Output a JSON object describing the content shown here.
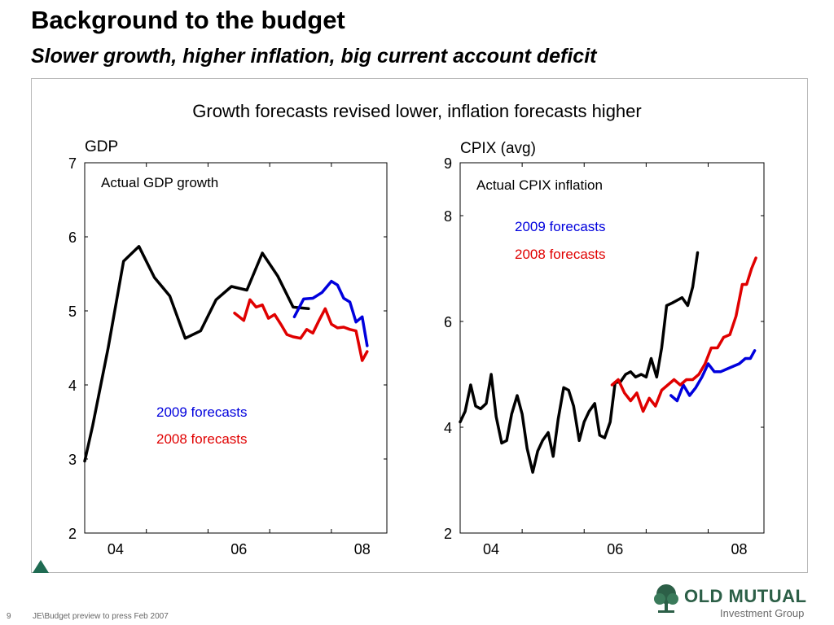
{
  "header": {
    "title": "Background to the budget",
    "subtitle": "Slower growth, higher inflation, big current account deficit"
  },
  "headline": "Growth forecasts revised lower, inflation forecasts higher",
  "footer": {
    "page_number": "9",
    "source_text": "JE\\Budget preview to press Feb 2007"
  },
  "logo": {
    "name": "OLD MUTUAL",
    "subtitle": "Investment Group",
    "brand_color": "#2c5f47"
  },
  "colors": {
    "actual": "#000000",
    "forecast_2009": "#0000dd",
    "forecast_2008": "#e00000"
  },
  "chart_data": [
    {
      "type": "line",
      "title": "GDP",
      "xlim": [
        2003.5,
        2008.4
      ],
      "ylim": [
        2,
        7
      ],
      "y_ticks": [
        2,
        3,
        4,
        5,
        6,
        7
      ],
      "x_ticks": [
        2004,
        2006,
        2008
      ],
      "x_tick_labels": [
        "04",
        "06",
        "08"
      ],
      "annotations": [
        "Actual GDP growth",
        "2009 forecasts",
        "2008 forecasts"
      ],
      "series": [
        {
          "name": "Actual GDP growth",
          "color": "#000000",
          "x": [
            2003.5,
            2003.63,
            2003.88,
            2004.13,
            2004.38,
            2004.63,
            2004.88,
            2005.13,
            2005.38,
            2005.63,
            2005.88,
            2006.13,
            2006.38,
            2006.63,
            2006.88,
            2007.13,
            2007.38,
            2007.63
          ],
          "y": [
            2.97,
            3.45,
            4.5,
            5.67,
            5.87,
            5.45,
            5.2,
            4.63,
            4.73,
            5.15,
            5.33,
            5.28,
            5.78,
            5.47,
            5.05,
            5.03,
            null,
            null
          ]
        },
        {
          "name": "2009 forecasts",
          "color": "#0000dd",
          "x": [
            2006.9,
            2007.05,
            2007.2,
            2007.35,
            2007.5,
            2007.6,
            2007.7,
            2007.8,
            2007.9,
            2008.0,
            2008.08
          ],
          "y": [
            4.92,
            5.16,
            5.17,
            5.25,
            5.4,
            5.35,
            5.17,
            5.12,
            4.85,
            4.92,
            4.53
          ]
        },
        {
          "name": "2008 forecasts",
          "color": "#e00000",
          "x": [
            2005.93,
            2006.08,
            2006.18,
            2006.28,
            2006.38,
            2006.48,
            2006.58,
            2006.68,
            2006.78,
            2006.88,
            2007.0,
            2007.1,
            2007.2,
            2007.3,
            2007.4,
            2007.5,
            2007.6,
            2007.7,
            2007.8,
            2007.9,
            2008.0,
            2008.08
          ],
          "y": [
            4.97,
            4.87,
            5.15,
            5.05,
            5.08,
            4.9,
            4.95,
            4.82,
            4.68,
            4.65,
            4.63,
            4.75,
            4.7,
            4.87,
            5.03,
            4.82,
            4.77,
            4.78,
            4.75,
            4.73,
            4.33,
            4.45
          ]
        }
      ]
    },
    {
      "type": "line",
      "title": "CPIX (avg)",
      "xlim": [
        2003.5,
        2008.4
      ],
      "ylim": [
        2,
        9
      ],
      "y_ticks": [
        2,
        4,
        6,
        8,
        9
      ],
      "x_ticks": [
        2004,
        2006,
        2008
      ],
      "x_tick_labels": [
        "04",
        "06",
        "08"
      ],
      "annotations": [
        "Actual CPIX inflation",
        "2009 forecasts",
        "2008 forecasts"
      ],
      "series": [
        {
          "name": "Actual CPIX inflation",
          "color": "#000000",
          "x": [
            2003.5,
            2003.58,
            2003.67,
            2003.75,
            2003.83,
            2003.92,
            2004.0,
            2004.08,
            2004.17,
            2004.25,
            2004.33,
            2004.42,
            2004.5,
            2004.58,
            2004.67,
            2004.75,
            2004.83,
            2004.92,
            2005.0,
            2005.08,
            2005.17,
            2005.25,
            2005.33,
            2005.42,
            2005.5,
            2005.58,
            2005.67,
            2005.75,
            2005.83,
            2005.92,
            2006.0,
            2006.08,
            2006.17,
            2006.25,
            2006.33,
            2006.42,
            2006.5,
            2006.58,
            2006.67,
            2006.75,
            2006.83,
            2006.92,
            2007.0,
            2007.08,
            2007.17,
            2007.25,
            2007.33,
            2007.42,
            2007.5,
            2007.58,
            2007.67
          ],
          "y": [
            4.1,
            4.3,
            4.8,
            4.4,
            4.35,
            4.45,
            5.0,
            4.2,
            3.7,
            3.75,
            4.25,
            4.6,
            4.25,
            3.6,
            3.15,
            3.55,
            3.75,
            3.9,
            3.45,
            4.15,
            4.75,
            4.7,
            4.4,
            3.75,
            4.1,
            4.3,
            4.45,
            3.85,
            3.8,
            4.1,
            4.85,
            4.85,
            5.0,
            5.05,
            4.95,
            5.0,
            4.95,
            5.3,
            4.95,
            5.5,
            6.3,
            6.35,
            6.4,
            6.45,
            6.3,
            6.65,
            7.3,
            null,
            null,
            null,
            null
          ]
        },
        {
          "name": "2009 forecasts",
          "color": "#0000dd",
          "x": [
            2006.9,
            2007.0,
            2007.1,
            2007.2,
            2007.3,
            2007.4,
            2007.5,
            2007.6,
            2007.7,
            2007.8,
            2007.9,
            2008.0,
            2008.1,
            2008.18,
            2008.25
          ],
          "y": [
            4.6,
            4.5,
            4.8,
            4.6,
            4.75,
            4.95,
            5.2,
            5.05,
            5.05,
            5.1,
            5.15,
            5.2,
            5.3,
            5.3,
            5.45
          ]
        },
        {
          "name": "2008 forecasts",
          "color": "#e00000",
          "x": [
            2005.95,
            2006.05,
            2006.15,
            2006.25,
            2006.35,
            2006.45,
            2006.55,
            2006.65,
            2006.75,
            2006.85,
            2006.95,
            2007.05,
            2007.15,
            2007.25,
            2007.35,
            2007.45,
            2007.55,
            2007.65,
            2007.75,
            2007.85,
            2007.95,
            2008.05,
            2008.12,
            2008.2,
            2008.27
          ],
          "y": [
            4.8,
            4.9,
            4.65,
            4.5,
            4.65,
            4.3,
            4.55,
            4.4,
            4.7,
            4.8,
            4.9,
            4.8,
            4.9,
            4.9,
            5.0,
            5.2,
            5.5,
            5.5,
            5.7,
            5.75,
            6.1,
            6.7,
            6.7,
            7.0,
            7.2
          ]
        }
      ]
    }
  ]
}
